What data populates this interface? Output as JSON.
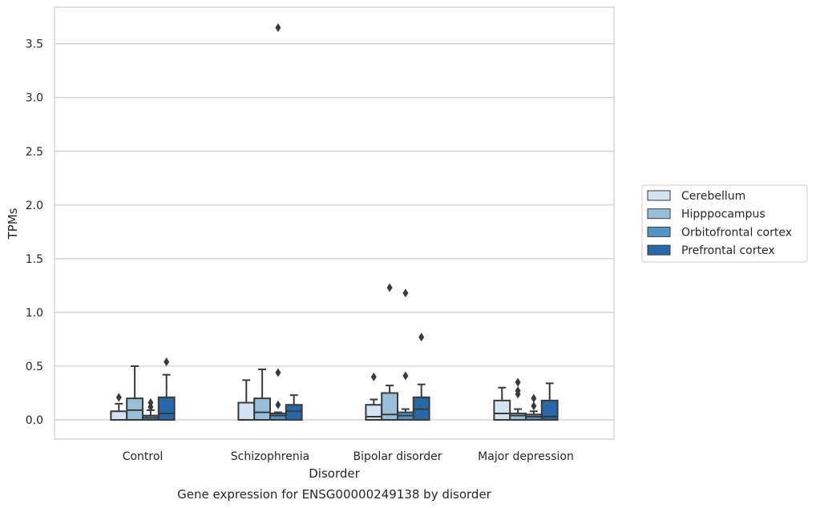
{
  "chart_data": {
    "type": "box",
    "title": "",
    "caption": "Gene expression for ENSG00000249138 by disorder",
    "xlabel": "Disorder",
    "ylabel": "TPMs",
    "ylim": [
      -0.18,
      3.85
    ],
    "yticks": [
      "0.0",
      "0.5",
      "1.0",
      "1.5",
      "2.0",
      "2.5",
      "3.0",
      "3.5"
    ],
    "ytick_values": [
      0,
      0.5,
      1.0,
      1.5,
      2.0,
      2.5,
      3.0,
      3.5
    ],
    "grid": true,
    "legend_position": "right",
    "categories": [
      "Control",
      "Schizophrenia",
      "Bipolar disorder",
      "Major depression"
    ],
    "series": [
      {
        "name": "Cerebellum",
        "color": "#d3e3f2",
        "boxes": [
          {
            "min": 0.0,
            "q1": 0.0,
            "median": 0.0,
            "q3": 0.08,
            "max": 0.15,
            "outliers": [
              0.21
            ]
          },
          {
            "min": 0.0,
            "q1": 0.0,
            "median": 0.0,
            "q3": 0.16,
            "max": 0.37,
            "outliers": []
          },
          {
            "min": 0.0,
            "q1": 0.0,
            "median": 0.03,
            "q3": 0.14,
            "max": 0.19,
            "outliers": [
              0.4
            ]
          },
          {
            "min": 0.0,
            "q1": 0.0,
            "median": 0.06,
            "q3": 0.18,
            "max": 0.3,
            "outliers": []
          }
        ]
      },
      {
        "name": "Hipppocampus",
        "color": "#99c0db",
        "boxes": [
          {
            "min": 0.0,
            "q1": 0.0,
            "median": 0.09,
            "q3": 0.2,
            "max": 0.5,
            "outliers": []
          },
          {
            "min": 0.0,
            "q1": 0.0,
            "median": 0.07,
            "q3": 0.2,
            "max": 0.47,
            "outliers": []
          },
          {
            "min": 0.0,
            "q1": 0.0,
            "median": 0.05,
            "q3": 0.25,
            "max": 0.32,
            "outliers": [
              1.23
            ]
          },
          {
            "min": 0.0,
            "q1": 0.0,
            "median": 0.04,
            "q3": 0.06,
            "max": 0.1,
            "outliers": [
              0.35,
              0.27,
              0.24
            ]
          }
        ]
      },
      {
        "name": "Orbitofrontal cortex",
        "color": "#5195c5",
        "boxes": [
          {
            "min": 0.0,
            "q1": 0.0,
            "median": 0.02,
            "q3": 0.04,
            "max": 0.09,
            "outliers": [
              0.16,
              0.12
            ]
          },
          {
            "min": 0.0,
            "q1": 0.0,
            "median": 0.04,
            "q3": 0.06,
            "max": 0.07,
            "outliers": [
              3.65,
              0.44,
              0.14
            ]
          },
          {
            "min": 0.0,
            "q1": 0.0,
            "median": 0.04,
            "q3": 0.07,
            "max": 0.1,
            "outliers": [
              1.18,
              0.41
            ]
          },
          {
            "min": 0.0,
            "q1": 0.0,
            "median": 0.03,
            "q3": 0.05,
            "max": 0.08,
            "outliers": [
              0.2,
              0.13
            ]
          }
        ]
      },
      {
        "name": "Prefrontal cortex",
        "color": "#2868a9",
        "boxes": [
          {
            "min": 0.0,
            "q1": 0.0,
            "median": 0.06,
            "q3": 0.21,
            "max": 0.42,
            "outliers": [
              0.54
            ]
          },
          {
            "min": 0.0,
            "q1": 0.0,
            "median": 0.08,
            "q3": 0.14,
            "max": 0.23,
            "outliers": []
          },
          {
            "min": 0.0,
            "q1": 0.0,
            "median": 0.1,
            "q3": 0.21,
            "max": 0.33,
            "outliers": [
              0.77
            ]
          },
          {
            "min": 0.0,
            "q1": 0.0,
            "median": 0.03,
            "q3": 0.18,
            "max": 0.34,
            "outliers": []
          }
        ]
      }
    ]
  }
}
